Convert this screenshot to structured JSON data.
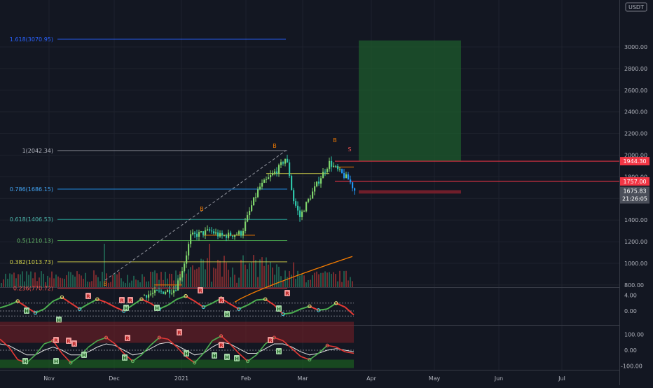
{
  "currency_badge": "USDT",
  "colors": {
    "background": "#131722",
    "up": "#26a69a",
    "down": "#ef5350",
    "fib_blue": "#2962ff",
    "price_red": "#f23645",
    "target_green": "#1e5b2c",
    "ma_orange": "#f57c00"
  },
  "chart_data": [
    {
      "type": "candlestick",
      "title": "",
      "x_ticks": [
        "Nov",
        "Dec",
        "2021",
        "Feb",
        "Mar",
        "Apr",
        "May",
        "Jun",
        "Jul"
      ],
      "y_ticks": [
        "3000.00",
        "2800.00",
        "2600.00",
        "2400.00",
        "2200.00",
        "2000.00",
        "1800.00",
        "1600.00",
        "1400.00",
        "1200.00",
        "1000.00",
        "800.00"
      ],
      "ylim": [
        620,
        3140
      ],
      "price_labels": {
        "upper": "1944.30",
        "middle": "1757.00",
        "last": "1675.83",
        "countdown": "21:26:05"
      },
      "fib_levels": [
        {
          "label": "1.618(3070.95)",
          "value": 3070.95
        },
        {
          "label": "1(2042.34)",
          "value": 2042.34
        },
        {
          "label": "0.786(1686.15)",
          "value": 1686.15
        },
        {
          "label": "0.618(1406.53)",
          "value": 1406.53
        },
        {
          "label": "0.5(1210.13)",
          "value": 1210.13
        },
        {
          "label": "0.382(1013.73)",
          "value": 1013.73
        },
        {
          "label": "0.236(770.72)",
          "value": 770.72
        }
      ],
      "target_zone": {
        "low": 1944.3,
        "high": 3060
      },
      "stop_zone": {
        "low": 1645,
        "high": 1675.83
      },
      "signals": [
        "B",
        "B",
        "B",
        "B",
        "S"
      ]
    },
    {
      "type": "line",
      "title": "",
      "y_ticks": [
        "4.00",
        "0.00"
      ],
      "ylim": [
        -2.2,
        5.5
      ],
      "signals": [
        "R",
        "R",
        "R",
        "R",
        "R",
        "R",
        "H",
        "H",
        "H",
        "H",
        "H",
        "H"
      ],
      "series": [
        {
          "values": [
            0.8,
            1.5,
            2.5,
            1.0,
            -0.5,
            0.5,
            2.5,
            3.5,
            2.0,
            0.5,
            1.8,
            3.0,
            2.2,
            1.0,
            0.0,
            1.5,
            3.0,
            2.0,
            0.5,
            1.5,
            3.0,
            3.8,
            2.5,
            1.0,
            2.0,
            3.2,
            1.8,
            0.5,
            1.5,
            2.8,
            3.0,
            1.5,
            -0.8,
            -0.5,
            0.5,
            1.2,
            0.2,
            0.5,
            2.0,
            1.0,
            -1.0
          ]
        }
      ]
    },
    {
      "type": "line",
      "title": "",
      "y_ticks": [
        "100.00",
        "0.00",
        "-100.00"
      ],
      "ylim": [
        -130,
        135
      ],
      "signals": [
        "R",
        "R",
        "R",
        "R",
        "R",
        "R",
        "R",
        "H",
        "H",
        "H",
        "H",
        "H",
        "H",
        "H",
        "H",
        "H"
      ],
      "series": [
        {
          "values": [
            70,
            20,
            -60,
            -80,
            -30,
            40,
            60,
            -20,
            -80,
            -40,
            20,
            60,
            80,
            40,
            -20,
            -70,
            -30,
            30,
            80,
            70,
            20,
            -40,
            -80,
            -20,
            60,
            90,
            40,
            -20,
            -70,
            -30,
            40,
            80,
            60,
            10,
            -40,
            -60,
            -20,
            30,
            20,
            -10,
            -20
          ]
        },
        {
          "values": [
            40,
            30,
            0,
            -30,
            -30,
            0,
            20,
            0,
            -30,
            -30,
            -10,
            20,
            40,
            30,
            0,
            -30,
            -20,
            10,
            40,
            50,
            30,
            0,
            -30,
            -20,
            20,
            50,
            40,
            10,
            -20,
            -20,
            10,
            40,
            40,
            20,
            -10,
            -30,
            -20,
            0,
            10,
            0,
            -10
          ]
        }
      ]
    }
  ]
}
